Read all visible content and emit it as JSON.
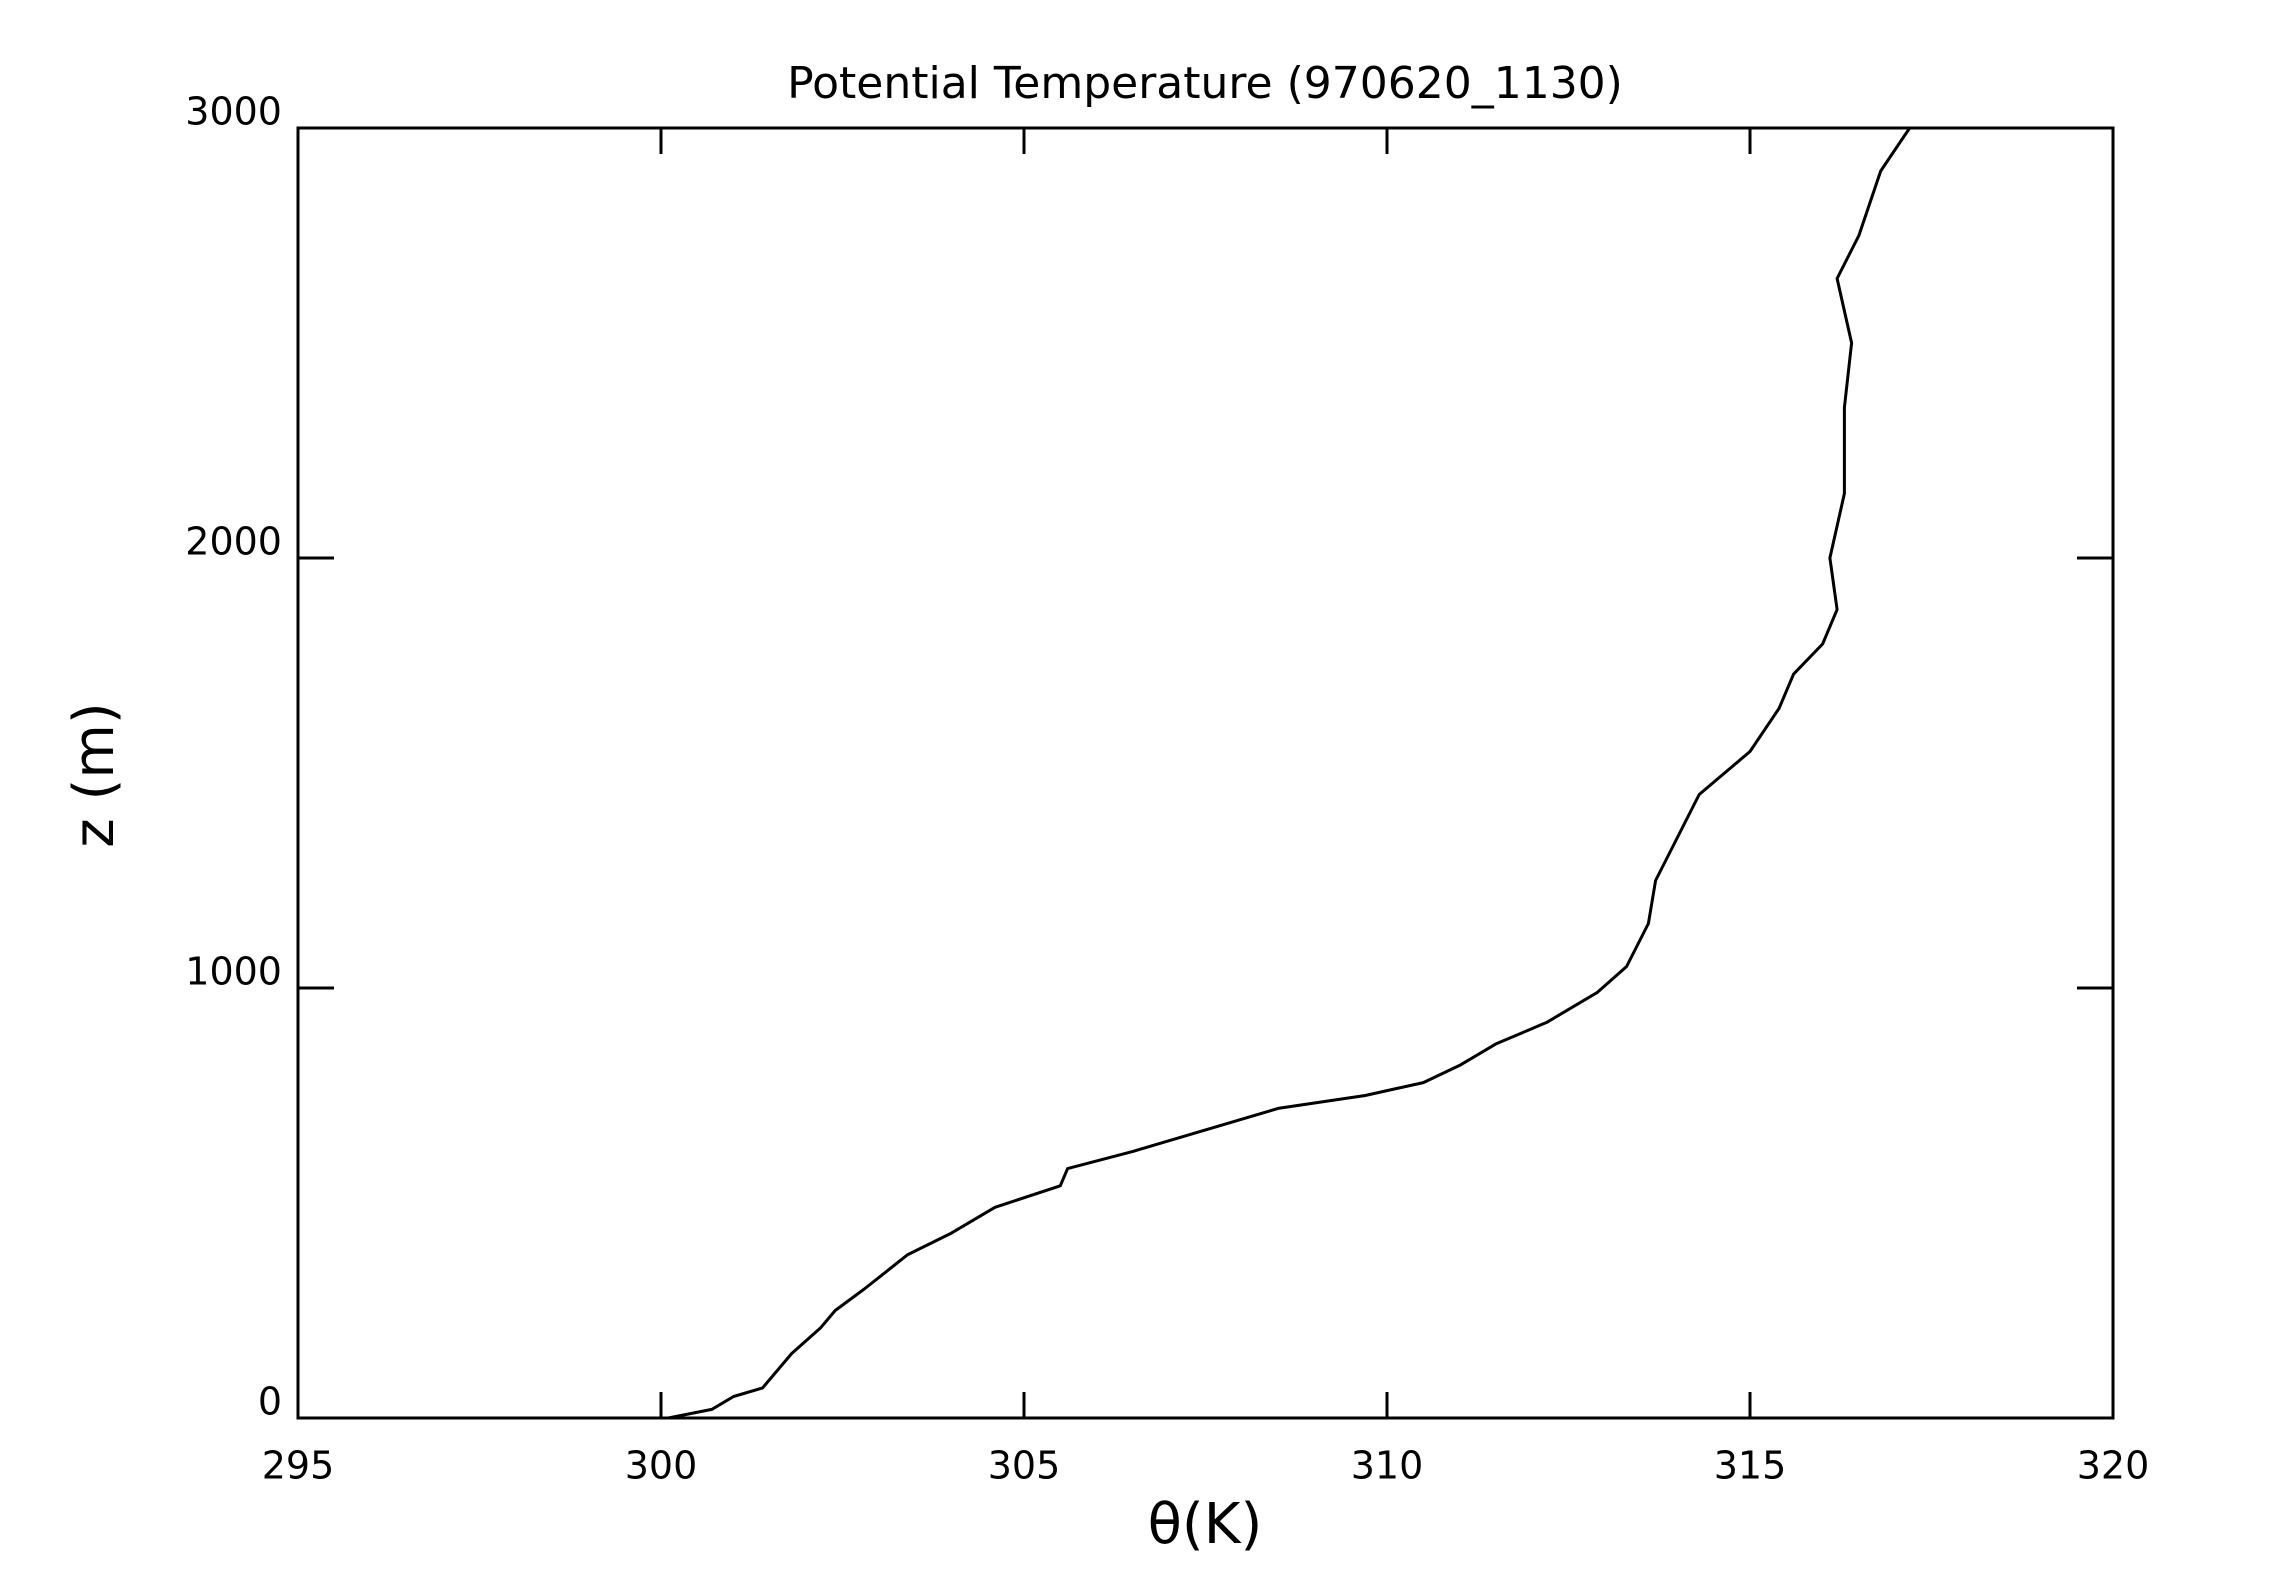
{
  "chart_data": {
    "type": "line",
    "title": "Potential Temperature (970620_1130)",
    "xlabel": "θ(K)",
    "ylabel": "z (m)",
    "xlim": [
      295,
      320
    ],
    "xticks": [
      295,
      300,
      305,
      310,
      315,
      320
    ],
    "ylim": [
      0,
      3000
    ],
    "yticks": [
      0,
      1000,
      2000,
      3000
    ],
    "grid": false,
    "series": [
      {
        "color": "#000000",
        "x": [
          300.1,
          300.7,
          301.0,
          301.4,
          301.8,
          302.2,
          302.4,
          302.8,
          303.4,
          304.0,
          304.6,
          305.5,
          305.6,
          306.5,
          307.5,
          308.5,
          309.7,
          310.5,
          311.0,
          311.5,
          312.2,
          312.9,
          313.3,
          313.6,
          313.7,
          314.0,
          314.3,
          315.0,
          315.4,
          315.6,
          316.0,
          316.2,
          316.1,
          316.3,
          316.3,
          316.4,
          316.2,
          316.5,
          316.8,
          317.2
        ],
        "values": [
          0,
          20,
          50,
          70,
          150,
          210,
          250,
          300,
          380,
          430,
          490,
          540,
          580,
          620,
          670,
          720,
          750,
          780,
          820,
          870,
          920,
          990,
          1050,
          1150,
          1250,
          1350,
          1450,
          1550,
          1650,
          1730,
          1800,
          1880,
          2000,
          2150,
          2350,
          2500,
          2650,
          2750,
          2900,
          3000
        ]
      }
    ]
  }
}
